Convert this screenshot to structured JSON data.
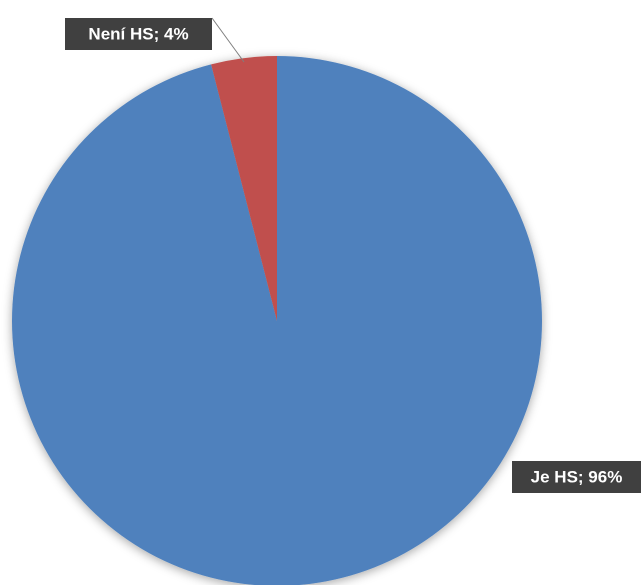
{
  "chart_data": {
    "type": "pie",
    "categories": [
      "Je HS",
      "Není HS"
    ],
    "values": [
      96,
      4
    ],
    "value_labels": [
      "Je HS; 96%",
      "Není HS; 4%"
    ],
    "colors": [
      "#4f81bd",
      "#c0504d"
    ]
  }
}
